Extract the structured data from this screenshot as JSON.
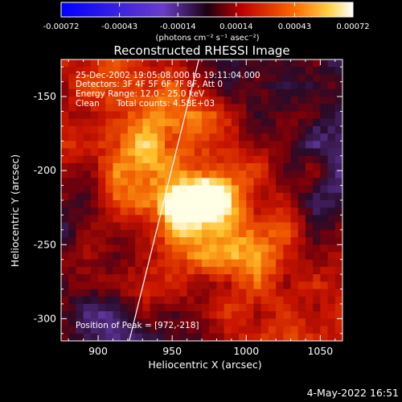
{
  "chart_data": {
    "type": "heatmap",
    "title": "Reconstructed RHESSI Image",
    "xlabel": "Heliocentric X (arcsec)",
    "ylabel": "Heliocentric Y (arcsec)",
    "xlim": [
      875,
      1065
    ],
    "ylim": [
      -315,
      -125
    ],
    "x_ticks": [
      900,
      950,
      1000,
      1050
    ],
    "y_ticks": [
      -150,
      -200,
      -250,
      -300
    ],
    "colorbar": {
      "label": "(photons cm⁻² s⁻¹ asec⁻²)",
      "range": [
        -0.00072,
        0.00072
      ],
      "ticks": [
        "-0.00072",
        "-0.00043",
        "-0.00014",
        "0.00014",
        "0.00043",
        "0.00072"
      ]
    },
    "annotations": {
      "time_range": "25-Dec-2002 19:05:08.000 to 19:11:04.000",
      "detectors": "Detectors: 3F 4F 5F 6F 7F 8F, Att 0",
      "energy": "Energy Range: 12.0 - 25.0 keV",
      "clean": "Clean",
      "counts": "Total counts: 4.58E+03",
      "peak": "Position of Peak = [972,-218]"
    },
    "peak": [
      972,
      -218
    ],
    "total_counts": 4580,
    "limb_line": [
      [
        921,
        -315
      ],
      [
        968,
        -125
      ]
    ]
  },
  "footer": {
    "date": "4-May-2022 16:51"
  }
}
